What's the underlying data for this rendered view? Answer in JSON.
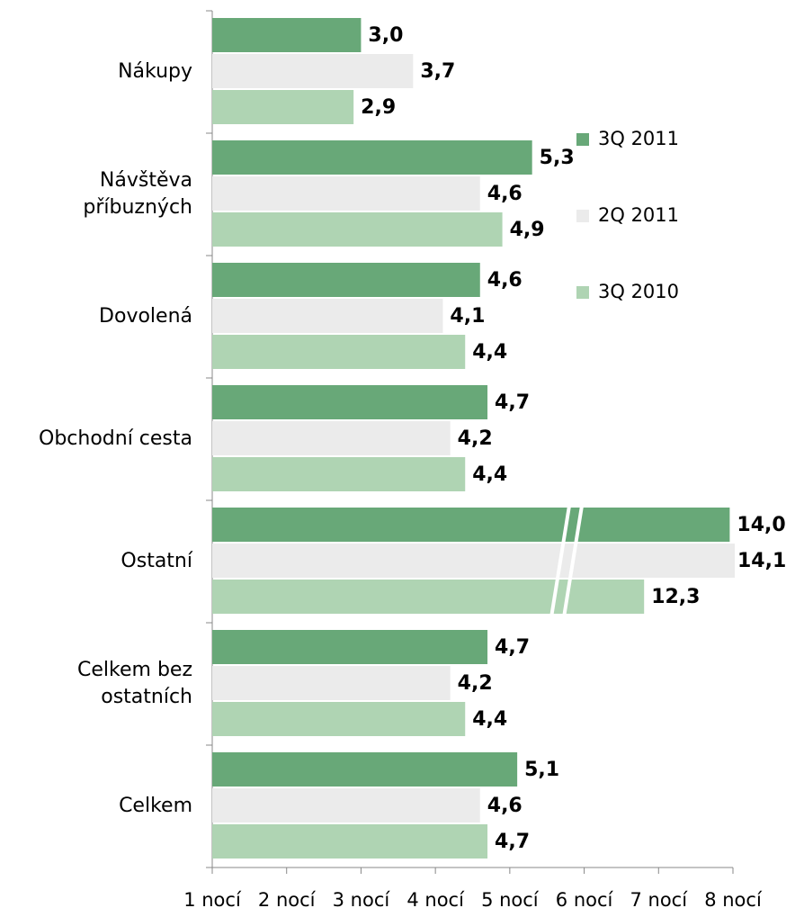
{
  "chart_data": {
    "type": "barh",
    "categories": [
      "Nákupy",
      "Návštěva příbuzných",
      "Dovolená",
      "Obchodní cesta",
      "Ostatní",
      "Celkem bez ostatních",
      "Celkem"
    ],
    "series": [
      {
        "name": "3Q 2011",
        "color": "#68a878",
        "values": [
          3.0,
          5.3,
          4.6,
          4.7,
          14.0,
          4.7,
          5.1
        ],
        "value_labels": [
          "3,0",
          "5,3",
          "4,6",
          "4,7",
          "14,0",
          "4,7",
          "5,1"
        ]
      },
      {
        "name": "2Q 2011",
        "color": "#ebebeb",
        "values": [
          3.7,
          4.6,
          4.1,
          4.2,
          14.1,
          4.2,
          4.6
        ],
        "value_labels": [
          "3,7",
          "4,6",
          "4,1",
          "4,2",
          "14,1",
          "4,2",
          "4,6"
        ]
      },
      {
        "name": "3Q 2010",
        "color": "#afd4b3",
        "values": [
          2.9,
          4.9,
          4.4,
          4.4,
          12.3,
          4.4,
          4.7
        ],
        "value_labels": [
          "2,9",
          "4,9",
          "4,4",
          "4,4",
          "12,3",
          "4,4",
          "4,7"
        ]
      }
    ],
    "xlim": [
      1,
      8
    ],
    "xticks": [
      {
        "value": 1,
        "label": "1 nocí"
      },
      {
        "value": 2,
        "label": "2 nocí"
      },
      {
        "value": 3,
        "label": "3 nocí"
      },
      {
        "value": 4,
        "label": "4 nocí"
      },
      {
        "value": 5,
        "label": "5 nocí"
      },
      {
        "value": 6,
        "label": "6 nocí"
      },
      {
        "value": 7,
        "label": "7 nocí"
      },
      {
        "value": 8,
        "label": "8 nocí"
      }
    ],
    "axis_break": true,
    "legend": "right"
  }
}
